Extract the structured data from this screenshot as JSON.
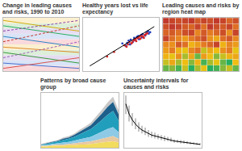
{
  "chart_data": [
    {
      "type": "line",
      "title": "Change in leading causes and risks, 1990 to 2010",
      "categories": [
        null,
        null
      ],
      "ylim": [
        0.5,
        10.5
      ],
      "tick_labels": false,
      "grid": false,
      "series": [
        {
          "color": "#d9534f",
          "values": [
            1,
            3
          ]
        },
        {
          "color": "#4a6fd0",
          "values": [
            2,
            1
          ]
        },
        {
          "color": "#9b59b6",
          "values": [
            3,
            6
          ],
          "line_style": "dashed"
        },
        {
          "color": "#3a9a3a",
          "values": [
            4,
            2
          ]
        },
        {
          "color": "#e08a2c",
          "values": [
            5,
            4
          ]
        },
        {
          "color": "#c0392b",
          "values": [
            6,
            9
          ],
          "line_style": "dashed"
        },
        {
          "color": "#2e86c1",
          "values": [
            7,
            5
          ]
        },
        {
          "color": "#8e44ad",
          "values": [
            8,
            10
          ],
          "line_style": "dashed"
        },
        {
          "color": "#27ae60",
          "values": [
            9,
            7
          ]
        },
        {
          "color": "#d4ac0d",
          "values": [
            10,
            8
          ]
        }
      ]
    },
    {
      "type": "scatter",
      "title": "Healthy years lost vs life expectancy",
      "xlim": [
        0,
        100
      ],
      "ylim": [
        0,
        100
      ],
      "tick_labels": false,
      "grid": false,
      "series": [
        {
          "color": "#d62728",
          "marker": "circle",
          "x": [
            55,
            60,
            62,
            65,
            68,
            70,
            72,
            74,
            75,
            78,
            80,
            82,
            84,
            86,
            58,
            66,
            71,
            77,
            83,
            88,
            30,
            40
          ],
          "values": [
            48,
            50,
            55,
            52,
            58,
            60,
            57,
            63,
            65,
            62,
            68,
            66,
            70,
            72,
            45,
            54,
            62,
            67,
            64,
            74,
            24,
            34
          ]
        },
        {
          "color": "#1f3fbf",
          "marker": "circle",
          "x": [
            52,
            57,
            61,
            64,
            67,
            69,
            73,
            76,
            79,
            81,
            85,
            87,
            90,
            63,
            70,
            75,
            80,
            89,
            59,
            92
          ],
          "values": [
            52,
            47,
            58,
            60,
            55,
            64,
            66,
            61,
            70,
            72,
            69,
            75,
            73,
            50,
            59,
            68,
            65,
            78,
            53,
            76
          ]
        },
        {
          "type": "line",
          "color": "#000000",
          "x": [
            5,
            98
          ],
          "values": [
            4,
            88
          ]
        }
      ]
    },
    {
      "type": "heatmap",
      "title": "Leading causes and risks by region heat map",
      "tick_labels": false,
      "grid": false,
      "cells": [
        [
          1,
          2,
          3,
          2,
          1,
          4,
          2,
          3,
          1,
          2,
          5,
          3
        ],
        [
          3,
          1,
          2,
          4,
          5,
          2,
          6,
          1,
          3,
          4,
          2,
          6
        ],
        [
          5,
          4,
          6,
          3,
          2,
          8,
          4,
          7,
          5,
          3,
          9,
          2
        ],
        [
          2,
          6,
          8,
          10,
          7,
          5,
          3,
          9,
          11,
          6,
          4,
          8
        ],
        [
          8,
          9,
          4,
          6,
          12,
          10,
          7,
          5,
          2,
          12,
          8,
          10
        ],
        [
          10,
          7,
          12,
          14,
          8,
          6,
          15,
          11,
          13,
          9,
          7,
          14
        ],
        [
          12,
          14,
          9,
          16,
          11,
          18,
          10,
          13,
          17,
          15,
          12,
          11
        ],
        [
          15,
          11,
          16,
          13,
          17,
          12,
          19,
          16,
          14,
          18,
          20,
          13
        ],
        [
          18,
          17,
          19,
          15,
          20,
          16,
          14,
          20,
          19,
          17,
          15,
          18
        ]
      ]
    },
    {
      "type": "area",
      "title": "Patterns by broad cause group",
      "stacked": true,
      "categories": [
        null,
        null,
        null,
        null,
        null,
        null,
        null,
        null,
        null,
        null,
        null,
        null,
        null,
        null,
        null
      ],
      "ylim": [
        0,
        85
      ],
      "tick_labels": false,
      "grid": false,
      "series": [
        {
          "color": "#f2dc5d",
          "values": [
            2,
            2,
            3,
            3,
            3,
            4,
            4,
            5,
            5,
            6,
            7,
            8,
            9,
            10,
            8
          ]
        },
        {
          "color": "#e9c9a0",
          "values": [
            1,
            1,
            1,
            2,
            2,
            2,
            3,
            3,
            4,
            4,
            5,
            6,
            7,
            8,
            6
          ]
        },
        {
          "color": "#8ecae6",
          "values": [
            1,
            1,
            2,
            2,
            3,
            3,
            4,
            5,
            6,
            7,
            9,
            11,
            13,
            14,
            10
          ]
        },
        {
          "color": "#219ebc",
          "values": [
            1,
            2,
            2,
            3,
            4,
            5,
            6,
            8,
            10,
            12,
            15,
            18,
            22,
            25,
            18
          ]
        },
        {
          "color": "#1d5f8a",
          "values": [
            0,
            1,
            1,
            1,
            2,
            2,
            3,
            4,
            5,
            6,
            8,
            10,
            12,
            14,
            10
          ]
        },
        {
          "color": "#c8c8c8",
          "values": [
            1,
            1,
            1,
            1,
            2,
            2,
            2,
            3,
            3,
            4,
            5,
            6,
            7,
            8,
            6
          ]
        }
      ]
    },
    {
      "type": "line",
      "title": "Uncertainty intervals for causes and risks",
      "categories": [
        null,
        null,
        null,
        null,
        null,
        null,
        null,
        null,
        null,
        null,
        null,
        null,
        null,
        null,
        null,
        null,
        null,
        null,
        null,
        null,
        null,
        null,
        null,
        null
      ],
      "ylim": [
        0,
        65
      ],
      "tick_labels": false,
      "grid": false,
      "color": "#000000",
      "values": [
        52,
        40,
        33,
        28,
        24,
        21,
        19,
        17,
        15,
        14,
        13,
        12,
        11,
        10,
        9,
        8,
        7.5,
        7,
        6.5,
        6,
        5.5,
        5,
        4.5,
        4
      ],
      "lower": [
        40,
        31,
        26,
        22,
        19,
        17,
        15,
        13,
        12,
        11,
        10,
        9,
        8,
        8,
        7,
        6,
        6,
        5,
        5,
        4.5,
        4,
        4,
        3.5,
        3
      ],
      "upper": [
        62,
        50,
        41,
        35,
        30,
        26,
        24,
        21,
        19,
        18,
        16,
        15,
        14,
        13,
        12,
        10,
        9.5,
        9,
        8.5,
        8,
        7,
        6.5,
        6,
        5.5
      ]
    }
  ]
}
